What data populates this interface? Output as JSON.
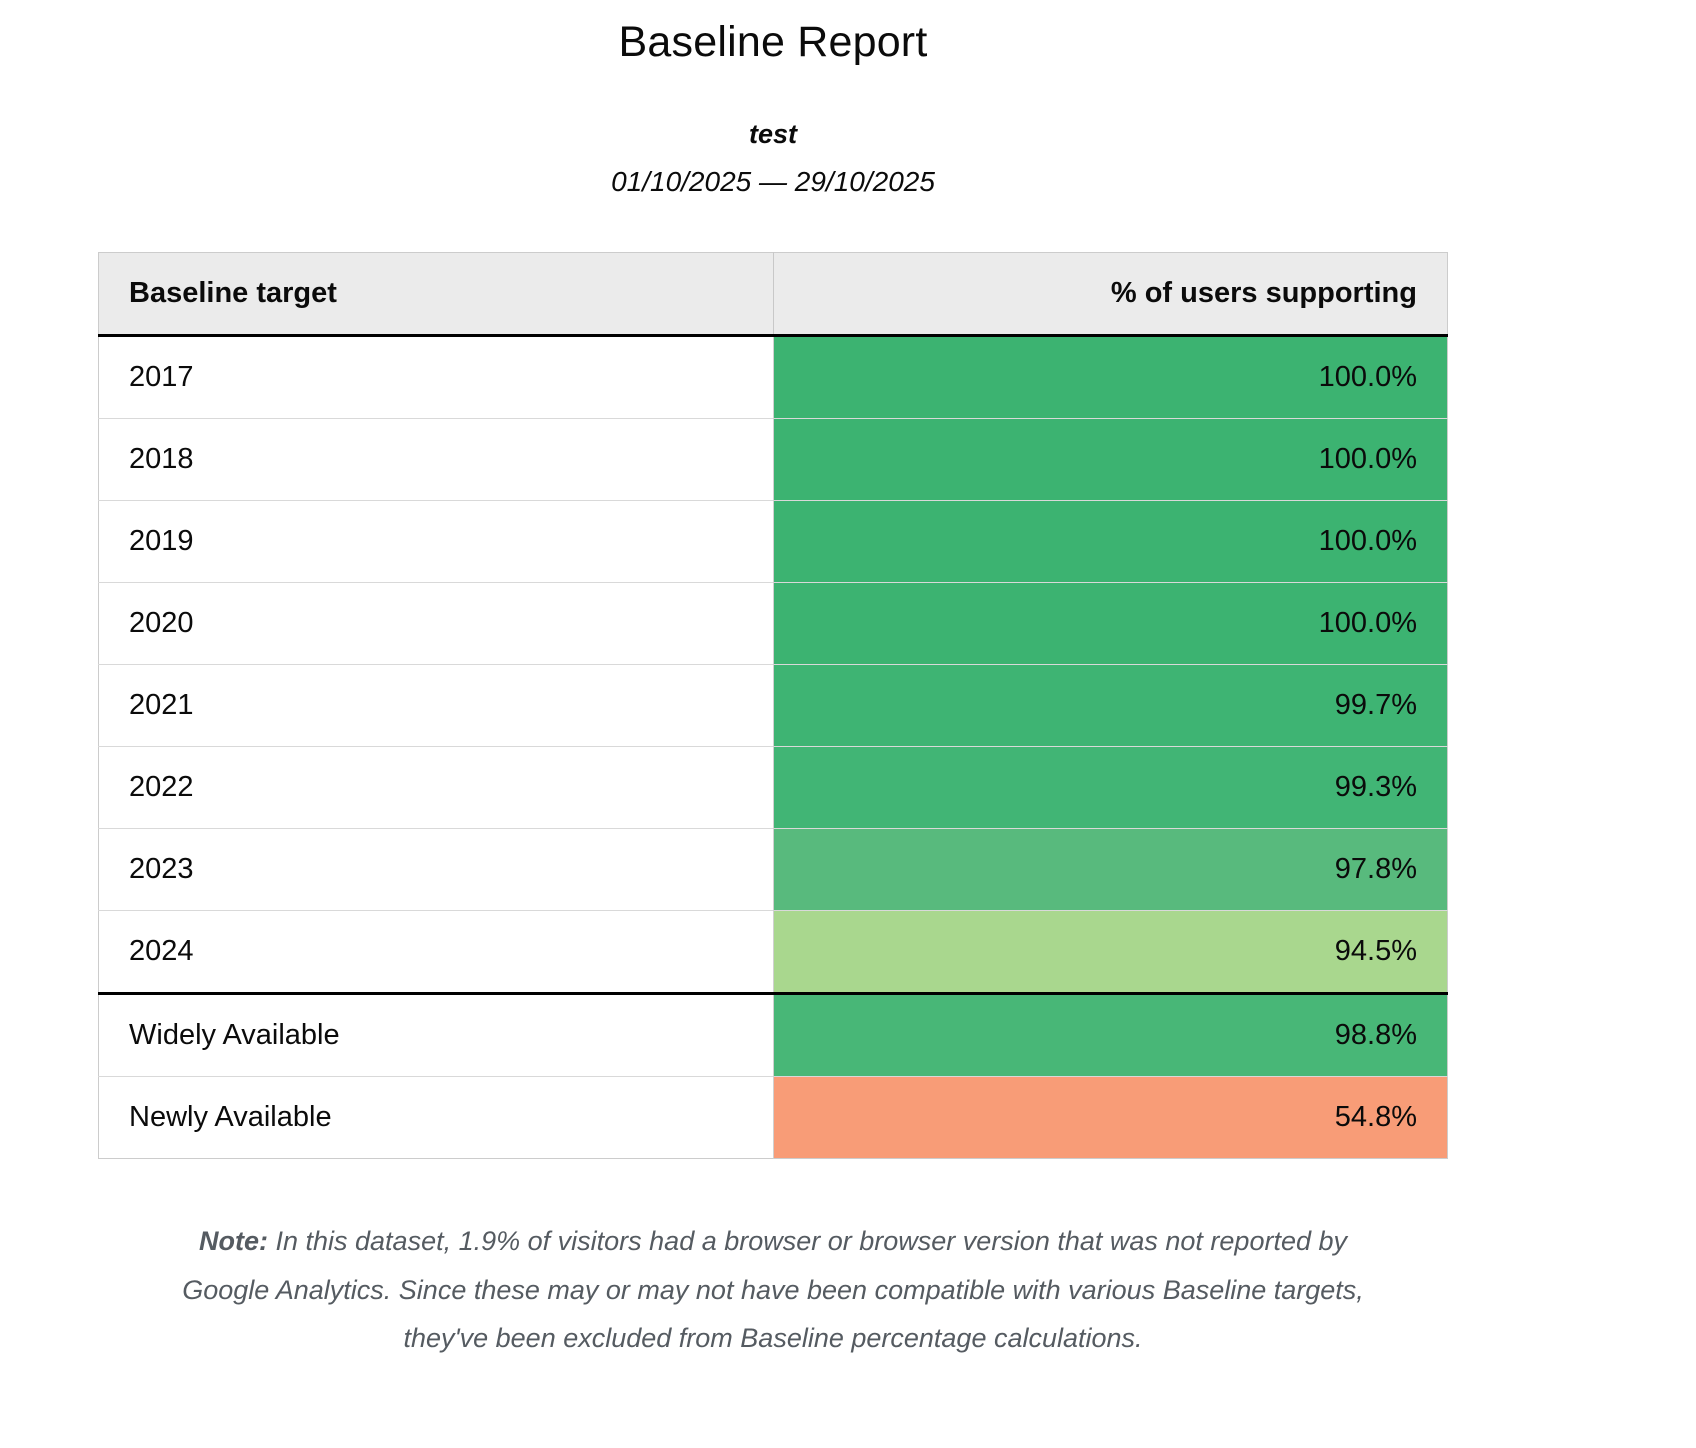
{
  "page": {
    "title": "Baseline Report",
    "subtitle": "test",
    "date_range": "01/10/2025 — 29/10/2025"
  },
  "table": {
    "header": {
      "target": "Baseline target",
      "value": "% of users supporting"
    },
    "rows": [
      {
        "target": "2017",
        "value": "100.0%",
        "bg": "#3cb371"
      },
      {
        "target": "2018",
        "value": "100.0%",
        "bg": "#3cb371"
      },
      {
        "target": "2019",
        "value": "100.0%",
        "bg": "#3cb371"
      },
      {
        "target": "2020",
        "value": "100.0%",
        "bg": "#3cb371"
      },
      {
        "target": "2021",
        "value": "99.7%",
        "bg": "#3eb473"
      },
      {
        "target": "2022",
        "value": "99.3%",
        "bg": "#41b575"
      },
      {
        "target": "2023",
        "value": "97.8%",
        "bg": "#58ba7d"
      },
      {
        "target": "2024",
        "value": "94.5%",
        "bg": "#a9d78e"
      },
      {
        "target": "Widely Available",
        "value": "98.8%",
        "bg": "#48b777"
      },
      {
        "target": "Newly Available",
        "value": "54.8%",
        "bg": "#f89c77"
      }
    ]
  },
  "note": {
    "label": "Note:",
    "text": " In this dataset, 1.9% of visitors had a browser or browser version that was not reported by Google Analytics. Since these may or may not have been compatible with various Baseline targets, they've been excluded from Baseline percentage calculations."
  },
  "chart_data": {
    "type": "table",
    "title": "Baseline Report",
    "subtitle": "test",
    "date_range": "01/10/2025 — 29/10/2025",
    "columns": [
      "Baseline target",
      "% of users supporting"
    ],
    "categories": [
      "2017",
      "2018",
      "2019",
      "2020",
      "2021",
      "2022",
      "2023",
      "2024",
      "Widely Available",
      "Newly Available"
    ],
    "values": [
      100.0,
      100.0,
      100.0,
      100.0,
      99.7,
      99.3,
      97.8,
      94.5,
      98.8,
      54.8
    ],
    "cell_colors": [
      "#3cb371",
      "#3cb371",
      "#3cb371",
      "#3cb371",
      "#3eb473",
      "#41b575",
      "#58ba7d",
      "#a9d78e",
      "#48b777",
      "#f89c77"
    ],
    "note": "In this dataset, 1.9% of visitors had a browser or browser version that was not reported by Google Analytics. Since these may or may not have been compatible with various Baseline targets, they've been excluded from Baseline percentage calculations.",
    "legend_position": "none",
    "grid": true
  }
}
